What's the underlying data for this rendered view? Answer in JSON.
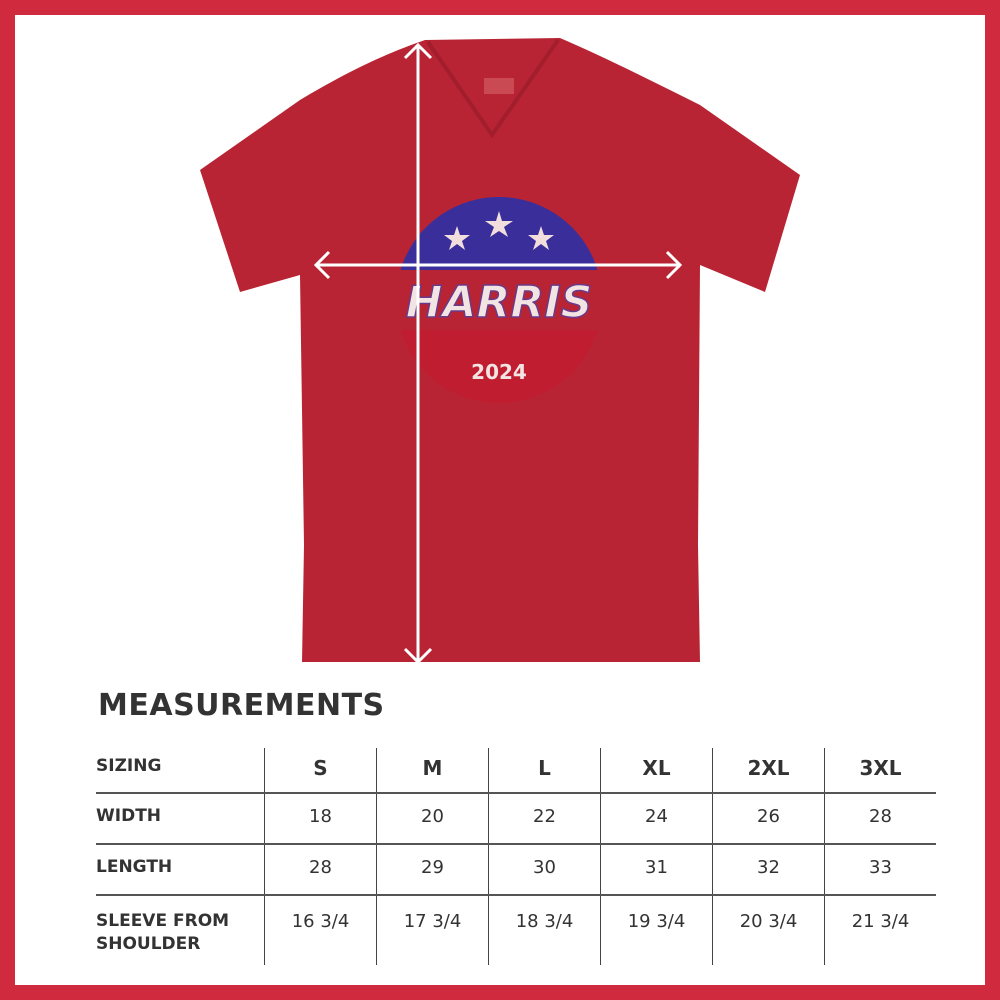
{
  "product": {
    "shirt_color": "#b82433",
    "frame_color": "#cf2a3e",
    "design": {
      "name": "HARRIS",
      "year": "2024",
      "stars": 3,
      "top_color": "#3a2f9a",
      "bottom_color": "#c01d30"
    }
  },
  "measurements": {
    "title": "MEASUREMENTS",
    "header": {
      "label": "SIZING",
      "sizes": [
        "S",
        "M",
        "L",
        "XL",
        "2XL",
        "3XL"
      ]
    },
    "rows": [
      {
        "label": "WIDTH",
        "values": [
          "18",
          "20",
          "22",
          "24",
          "26",
          "28"
        ]
      },
      {
        "label": "LENGTH",
        "values": [
          "28",
          "29",
          "30",
          "31",
          "32",
          "33"
        ]
      },
      {
        "label_line1": "SLEEVE FROM",
        "label_line2": "SHOULDER",
        "values": [
          "16 3/4",
          "17 3/4",
          "18 3/4",
          "19 3/4",
          "20 3/4",
          "21 3/4"
        ]
      }
    ]
  }
}
